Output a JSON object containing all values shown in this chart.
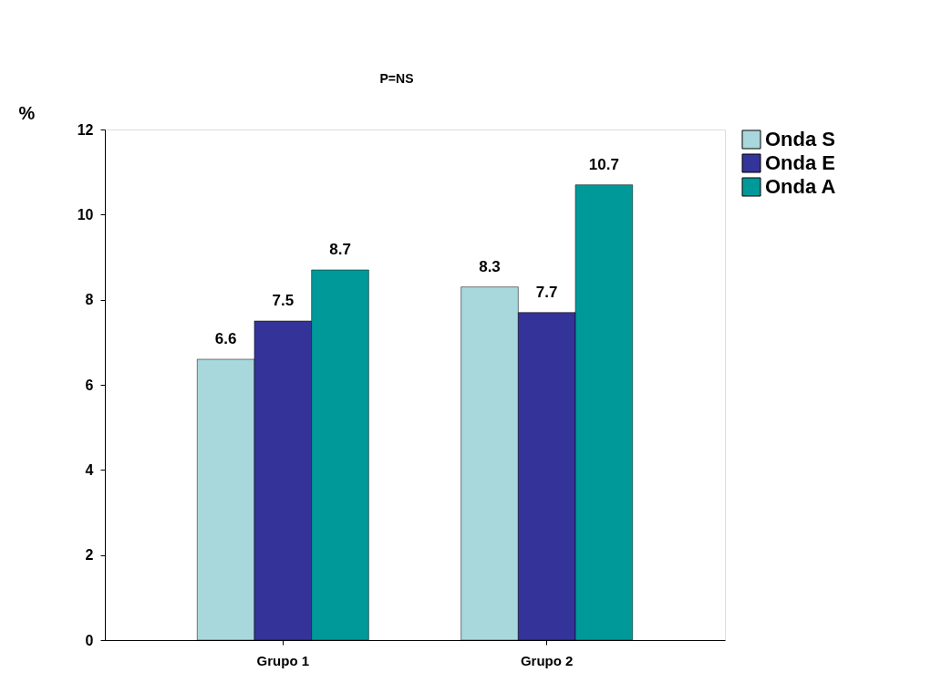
{
  "chart_data": {
    "type": "bar",
    "ylabel": "%",
    "categories": [
      "Grupo 1",
      "Grupo 2"
    ],
    "series": [
      {
        "name": "Onda S",
        "color": "#a8d8dc",
        "values": [
          6.6,
          8.3
        ]
      },
      {
        "name": "Onda E",
        "color": "#333399",
        "values": [
          7.5,
          7.7
        ]
      },
      {
        "name": "Onda A",
        "color": "#009999",
        "values": [
          8.7,
          10.7
        ]
      }
    ],
    "ylim": [
      0,
      12
    ],
    "yticks": [
      0,
      2,
      4,
      6,
      8,
      10,
      12
    ],
    "grid": false,
    "legend": "top right",
    "data_labels": true,
    "annotations": [
      "P=NS"
    ]
  }
}
